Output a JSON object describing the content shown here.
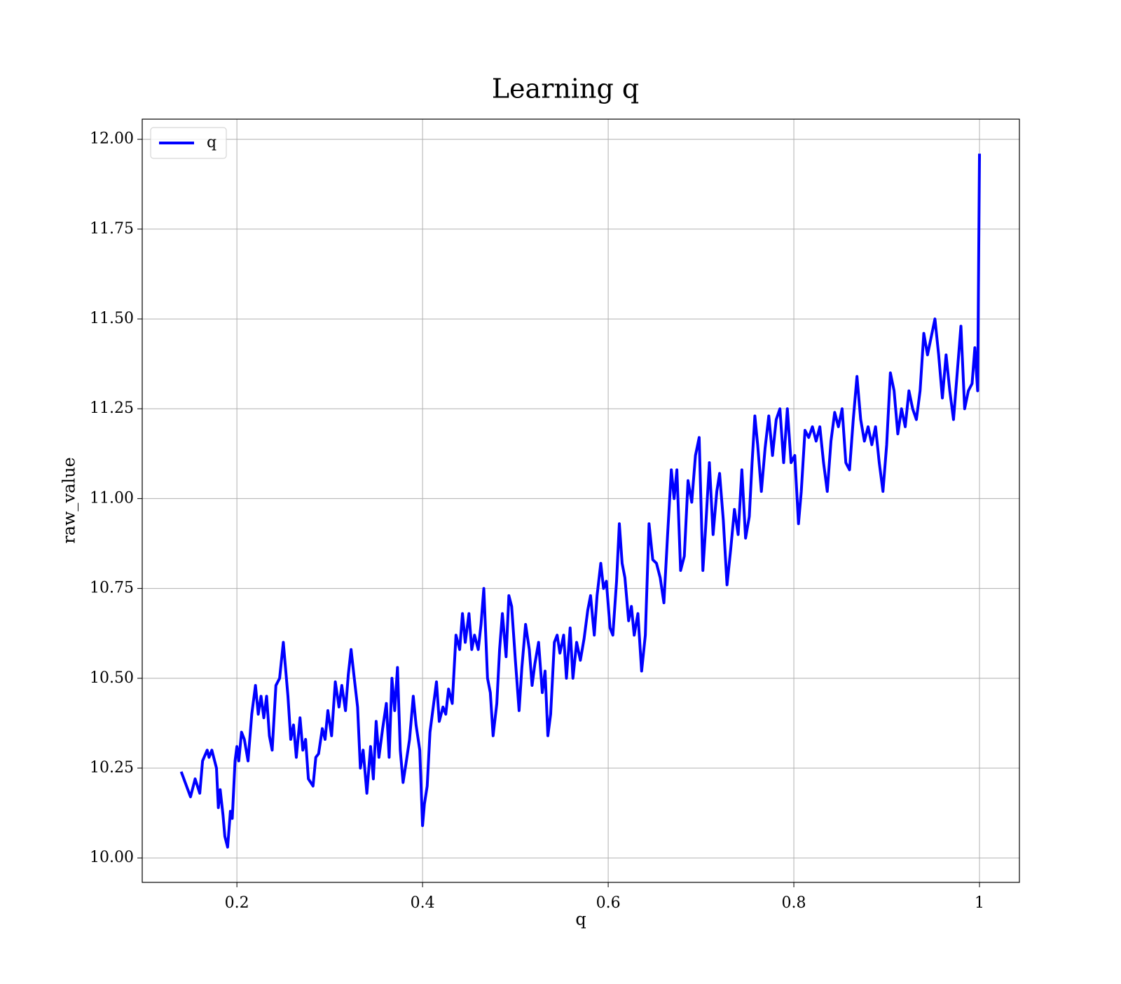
{
  "chart_data": {
    "type": "line",
    "title": "Learning q",
    "x_label": "q",
    "y_label": "raw_value",
    "x": [
      0.14,
      0.15,
      0.155,
      0.16,
      0.163,
      0.168,
      0.17,
      0.173,
      0.178,
      0.18,
      0.182,
      0.185,
      0.187,
      0.19,
      0.193,
      0.195,
      0.198,
      0.2,
      0.202,
      0.205,
      0.208,
      0.212,
      0.216,
      0.22,
      0.223,
      0.226,
      0.229,
      0.232,
      0.235,
      0.238,
      0.242,
      0.246,
      0.25,
      0.255,
      0.258,
      0.261,
      0.264,
      0.268,
      0.271,
      0.274,
      0.277,
      0.282,
      0.285,
      0.288,
      0.292,
      0.295,
      0.298,
      0.302,
      0.306,
      0.31,
      0.313,
      0.317,
      0.32,
      0.323,
      0.326,
      0.33,
      0.333,
      0.336,
      0.34,
      0.344,
      0.347,
      0.35,
      0.353,
      0.357,
      0.361,
      0.364,
      0.367,
      0.37,
      0.373,
      0.376,
      0.379,
      0.382,
      0.386,
      0.39,
      0.393,
      0.397,
      0.4,
      0.402,
      0.405,
      0.408,
      0.412,
      0.415,
      0.418,
      0.422,
      0.425,
      0.428,
      0.432,
      0.436,
      0.44,
      0.443,
      0.446,
      0.45,
      0.453,
      0.456,
      0.46,
      0.463,
      0.466,
      0.47,
      0.473,
      0.476,
      0.48,
      0.483,
      0.486,
      0.49,
      0.493,
      0.496,
      0.5,
      0.504,
      0.507,
      0.511,
      0.515,
      0.518,
      0.521,
      0.525,
      0.529,
      0.532,
      0.535,
      0.538,
      0.542,
      0.545,
      0.548,
      0.552,
      0.555,
      0.559,
      0.562,
      0.566,
      0.57,
      0.574,
      0.578,
      0.581,
      0.585,
      0.588,
      0.592,
      0.595,
      0.598,
      0.602,
      0.605,
      0.609,
      0.612,
      0.615,
      0.618,
      0.622,
      0.625,
      0.628,
      0.632,
      0.636,
      0.64,
      0.644,
      0.648,
      0.652,
      0.656,
      0.66,
      0.664,
      0.668,
      0.671,
      0.674,
      0.678,
      0.682,
      0.686,
      0.69,
      0.694,
      0.698,
      0.702,
      0.705,
      0.709,
      0.713,
      0.717,
      0.72,
      0.724,
      0.728,
      0.732,
      0.736,
      0.74,
      0.744,
      0.748,
      0.752,
      0.755,
      0.758,
      0.761,
      0.765,
      0.769,
      0.773,
      0.777,
      0.781,
      0.785,
      0.789,
      0.793,
      0.797,
      0.801,
      0.805,
      0.808,
      0.812,
      0.816,
      0.82,
      0.824,
      0.828,
      0.832,
      0.836,
      0.84,
      0.844,
      0.848,
      0.852,
      0.856,
      0.86,
      0.864,
      0.868,
      0.872,
      0.876,
      0.88,
      0.884,
      0.888,
      0.892,
      0.896,
      0.9,
      0.904,
      0.908,
      0.912,
      0.916,
      0.92,
      0.924,
      0.928,
      0.932,
      0.936,
      0.94,
      0.944,
      0.948,
      0.952,
      0.956,
      0.96,
      0.964,
      0.968,
      0.972,
      0.976,
      0.98,
      0.984,
      0.988,
      0.992,
      0.995,
      0.998,
      1.0
    ],
    "series": [
      {
        "name": "q",
        "color": "#0000ff",
        "values": [
          10.24,
          10.17,
          10.22,
          10.18,
          10.27,
          10.3,
          10.28,
          10.3,
          10.25,
          10.14,
          10.19,
          10.12,
          10.06,
          10.03,
          10.13,
          10.11,
          10.27,
          10.31,
          10.27,
          10.35,
          10.33,
          10.27,
          10.4,
          10.48,
          10.4,
          10.45,
          10.39,
          10.45,
          10.34,
          10.3,
          10.48,
          10.5,
          10.6,
          10.45,
          10.33,
          10.37,
          10.28,
          10.39,
          10.3,
          10.33,
          10.22,
          10.2,
          10.28,
          10.29,
          10.36,
          10.33,
          10.41,
          10.34,
          10.49,
          10.42,
          10.48,
          10.41,
          10.51,
          10.58,
          10.51,
          10.42,
          10.25,
          10.3,
          10.18,
          10.31,
          10.22,
          10.38,
          10.28,
          10.36,
          10.43,
          10.28,
          10.5,
          10.41,
          10.53,
          10.3,
          10.21,
          10.26,
          10.33,
          10.45,
          10.37,
          10.3,
          10.09,
          10.15,
          10.2,
          10.35,
          10.43,
          10.49,
          10.38,
          10.42,
          10.4,
          10.47,
          10.43,
          10.62,
          10.58,
          10.68,
          10.6,
          10.68,
          10.58,
          10.62,
          10.58,
          10.65,
          10.75,
          10.5,
          10.46,
          10.34,
          10.43,
          10.58,
          10.68,
          10.56,
          10.73,
          10.7,
          10.55,
          10.41,
          10.53,
          10.65,
          10.58,
          10.48,
          10.54,
          10.6,
          10.46,
          10.52,
          10.34,
          10.4,
          10.6,
          10.62,
          10.57,
          10.62,
          10.5,
          10.64,
          10.5,
          10.6,
          10.55,
          10.61,
          10.69,
          10.73,
          10.62,
          10.73,
          10.82,
          10.75,
          10.77,
          10.64,
          10.62,
          10.77,
          10.93,
          10.82,
          10.78,
          10.66,
          10.7,
          10.62,
          10.68,
          10.52,
          10.62,
          10.93,
          10.83,
          10.82,
          10.78,
          10.71,
          10.9,
          11.08,
          11.0,
          11.08,
          10.8,
          10.84,
          11.05,
          10.99,
          11.12,
          11.17,
          10.8,
          10.92,
          11.1,
          10.9,
          11.02,
          11.07,
          10.94,
          10.76,
          10.86,
          10.97,
          10.9,
          11.08,
          10.89,
          10.95,
          11.1,
          11.23,
          11.15,
          11.02,
          11.14,
          11.23,
          11.12,
          11.22,
          11.25,
          11.1,
          11.25,
          11.1,
          11.12,
          10.93,
          11.02,
          11.19,
          11.17,
          11.2,
          11.16,
          11.2,
          11.1,
          11.02,
          11.16,
          11.24,
          11.2,
          11.25,
          11.1,
          11.08,
          11.22,
          11.34,
          11.22,
          11.16,
          11.2,
          11.15,
          11.2,
          11.1,
          11.02,
          11.15,
          11.35,
          11.3,
          11.18,
          11.25,
          11.2,
          11.3,
          11.25,
          11.22,
          11.3,
          11.46,
          11.4,
          11.45,
          11.5,
          11.4,
          11.28,
          11.4,
          11.3,
          11.22,
          11.35,
          11.48,
          11.25,
          11.3,
          11.32,
          11.42,
          11.3,
          11.96
        ]
      }
    ],
    "xlim": [
      0.098,
      1.043
    ],
    "xticks": [
      0.2,
      0.4,
      0.6,
      0.8,
      1.0
    ],
    "ylim": [
      9.932,
      12.056
    ],
    "yticks": [
      {
        "value": 10,
        "label": "10.00"
      },
      {
        "value": 10.25,
        "label": "10.25"
      },
      {
        "value": 10.5,
        "label": "10.50"
      },
      {
        "value": 10.75,
        "label": "10.75"
      },
      {
        "value": 11,
        "label": "11.00"
      },
      {
        "value": 11.25,
        "label": "11.25"
      },
      {
        "value": 11.5,
        "label": "11.50"
      },
      {
        "value": 11.75,
        "label": "11.75"
      },
      {
        "value": 12,
        "label": "12.00"
      }
    ],
    "grid": true,
    "legend": "upper left"
  }
}
